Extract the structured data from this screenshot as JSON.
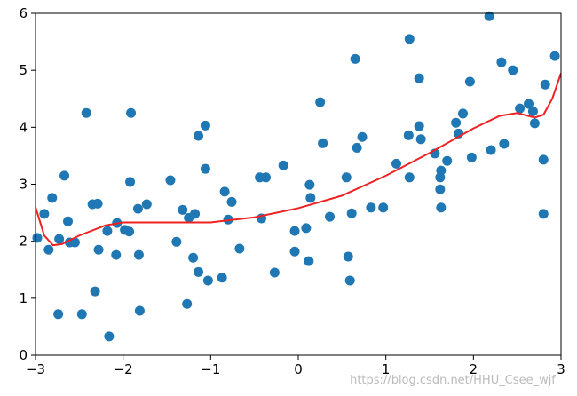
{
  "chart_data": {
    "type": "scatter",
    "xlim": [
      -3,
      3
    ],
    "ylim": [
      0,
      6
    ],
    "xticks": [
      {
        "value": -3,
        "label": "−3"
      },
      {
        "value": -2,
        "label": "−2"
      },
      {
        "value": -1,
        "label": "−1"
      },
      0,
      1,
      2,
      3
    ],
    "yticks": [
      0,
      1,
      2,
      3,
      4,
      5,
      6
    ],
    "watermark": "https://blog.csdn.net/HHU_Csee_wjf",
    "series": [
      {
        "type": "scatter",
        "color": "#1f77b4",
        "x": [
          -2.98,
          -2.9,
          -2.85,
          -2.81,
          -2.74,
          -2.73,
          -2.67,
          -2.63,
          -2.61,
          -2.55,
          -2.47,
          -2.42,
          -2.35,
          -2.32,
          -2.29,
          -2.28,
          -2.18,
          -2.16,
          -2.08,
          -2.07,
          -1.98,
          -1.93,
          -1.92,
          -1.91,
          -1.83,
          -1.82,
          -1.81,
          -1.73,
          -1.46,
          -1.39,
          -1.32,
          -1.27,
          -1.25,
          -1.2,
          -1.18,
          -1.14,
          -1.14,
          -1.06,
          -1.06,
          -1.03,
          -0.87,
          -0.84,
          -0.8,
          -0.76,
          -0.67,
          -0.44,
          -0.42,
          -0.37,
          -0.27,
          -0.17,
          -0.04,
          -0.04,
          0.09,
          0.12,
          0.13,
          0.14,
          0.25,
          0.28,
          0.36,
          0.55,
          0.57,
          0.59,
          0.61,
          0.65,
          0.67,
          0.73,
          0.83,
          0.97,
          1.12,
          1.26,
          1.27,
          1.27,
          1.38,
          1.38,
          1.4,
          1.56,
          1.62,
          1.62,
          1.63,
          1.63,
          1.7,
          1.8,
          1.83,
          1.88,
          1.96,
          1.98,
          2.18,
          2.2,
          2.32,
          2.35,
          2.45,
          2.53,
          2.63,
          2.68,
          2.7,
          2.8,
          2.8,
          2.82,
          2.93
        ],
        "y": [
          2.06,
          2.48,
          1.85,
          2.76,
          0.72,
          2.04,
          3.15,
          2.35,
          1.98,
          1.98,
          0.72,
          4.25,
          2.65,
          1.12,
          2.66,
          1.85,
          2.18,
          0.33,
          1.76,
          2.32,
          2.2,
          2.17,
          3.04,
          4.25,
          2.57,
          1.76,
          0.78,
          2.65,
          3.07,
          1.99,
          2.55,
          0.9,
          2.41,
          1.71,
          2.48,
          1.46,
          3.85,
          4.03,
          3.27,
          1.31,
          1.36,
          2.87,
          2.38,
          2.69,
          1.87,
          3.12,
          2.4,
          3.12,
          1.45,
          3.33,
          2.18,
          1.82,
          2.23,
          1.65,
          2.99,
          2.76,
          4.44,
          3.72,
          2.43,
          3.12,
          1.73,
          1.31,
          2.49,
          5.2,
          3.64,
          3.83,
          2.59,
          2.59,
          3.36,
          3.86,
          5.55,
          3.12,
          4.86,
          4.02,
          3.79,
          3.54,
          2.91,
          3.12,
          3.24,
          2.59,
          3.41,
          4.08,
          3.89,
          4.24,
          4.8,
          3.47,
          5.95,
          3.6,
          5.14,
          3.71,
          5.0,
          4.33,
          4.41,
          4.28,
          4.07,
          3.43,
          2.48,
          4.75,
          5.25
        ]
      },
      {
        "type": "line",
        "color": "#ee2222",
        "x": [
          -3,
          -2.9,
          -2.8,
          -2.7,
          -2.5,
          -2.2,
          -2,
          -1.5,
          -1,
          -0.5,
          0,
          0.5,
          1,
          1.5,
          2,
          2.3,
          2.5,
          2.7,
          2.8,
          2.9,
          3
        ],
        "y": [
          2.6,
          2.1,
          1.93,
          1.95,
          2.1,
          2.28,
          2.33,
          2.33,
          2.33,
          2.42,
          2.58,
          2.8,
          3.15,
          3.55,
          3.98,
          4.2,
          4.25,
          4.17,
          4.22,
          4.5,
          4.95
        ]
      }
    ]
  }
}
